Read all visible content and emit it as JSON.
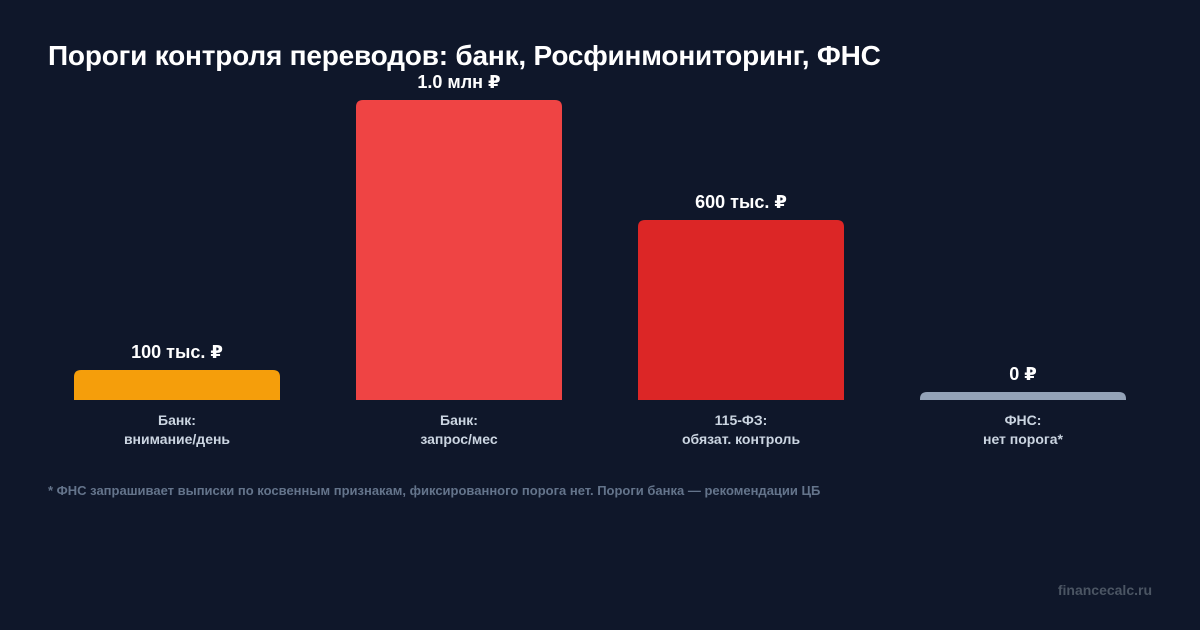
{
  "chart_data": {
    "type": "bar",
    "title": "Пороги контроля переводов: банк, Росфинмониторинг, ФНС",
    "unit": "₽",
    "categories": [
      [
        "Банк:",
        "внимание/день"
      ],
      [
        "Банк:",
        "запрос/мес"
      ],
      [
        "115-ФЗ:",
        "обязат. контроль"
      ],
      [
        "ФНС:",
        "нет порога*"
      ]
    ],
    "values": [
      100000,
      1000000,
      600000,
      0
    ],
    "value_labels": [
      "100 тыс. ₽",
      "1.0 млн ₽",
      "600 тыс. ₽",
      "0 ₽"
    ],
    "colors": [
      "#f59e0b",
      "#ef4444",
      "#dc2626",
      "#94a3b8"
    ],
    "ylim": [
      0,
      1000000
    ],
    "grid": false,
    "legend": "none"
  },
  "footnote": "* ФНС запрашивает выписки по косвенным признакам, фиксированного порога нет. Пороги банка — рекомендации ЦБ",
  "watermark": "financecalc.ru"
}
